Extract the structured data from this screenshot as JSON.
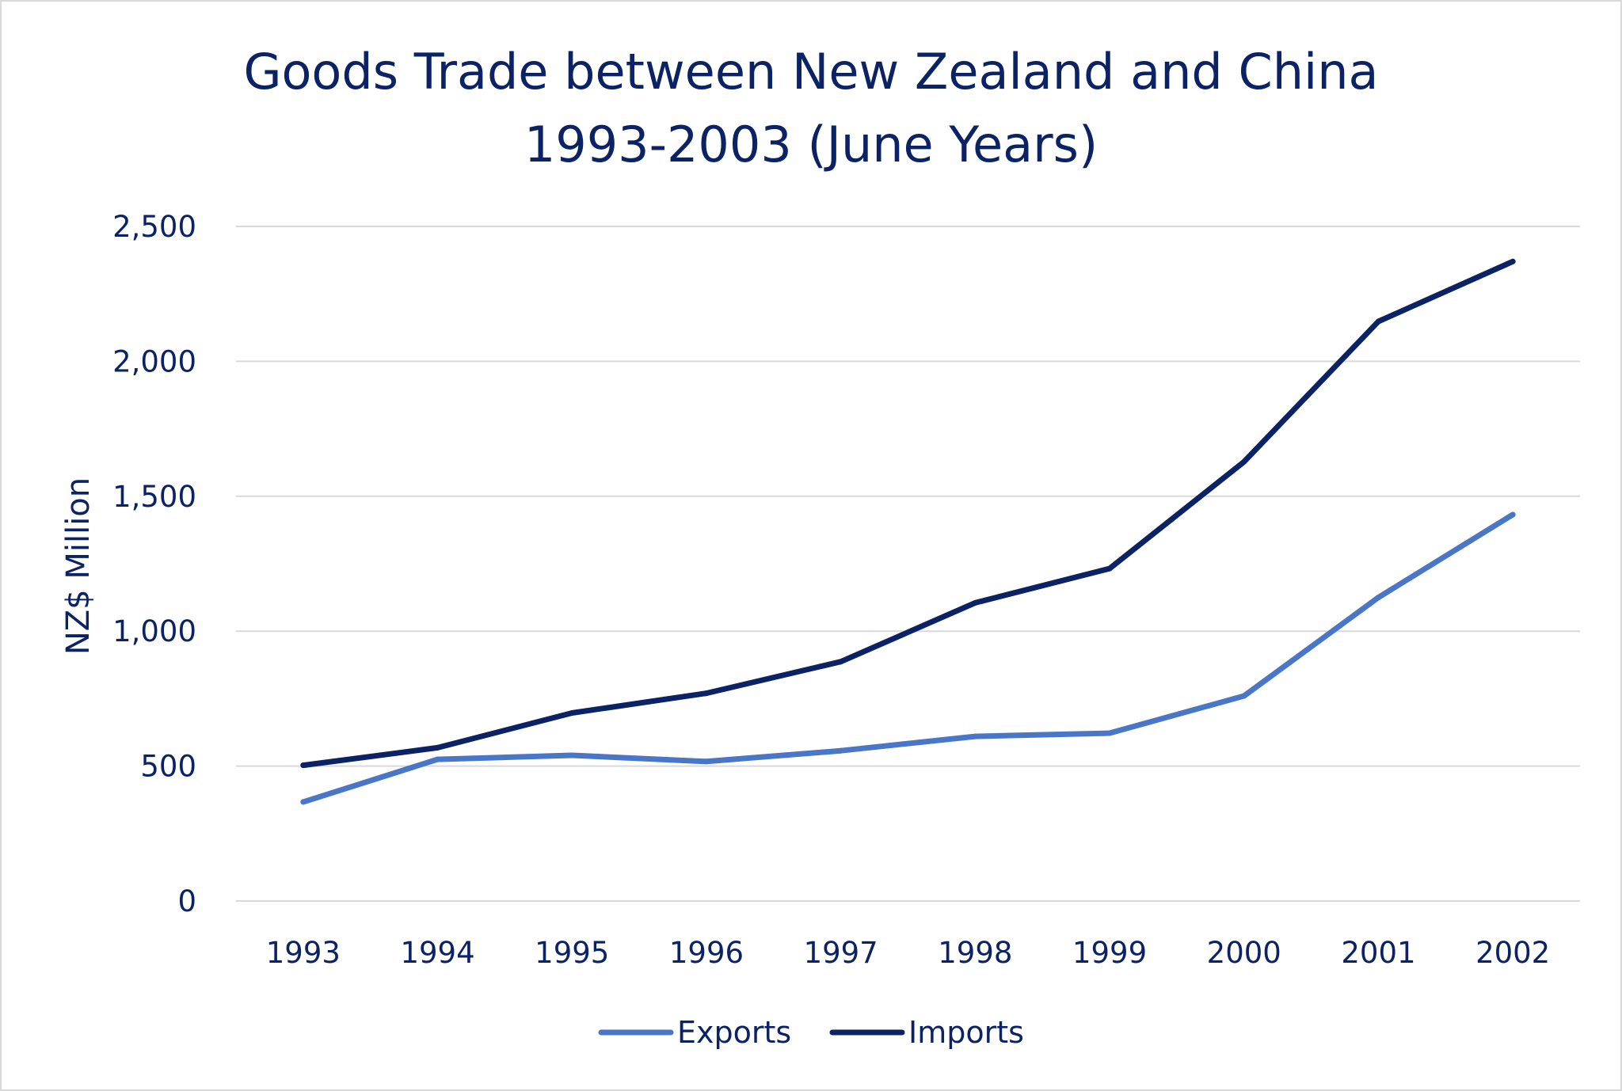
{
  "chart_data": {
    "type": "line",
    "title_lines": [
      "Goods Trade between New Zealand and China",
      "1993-2003 (June Years)"
    ],
    "xlabel": "",
    "ylabel": "NZ$ Million",
    "categories": [
      "1993",
      "1994",
      "1995",
      "1996",
      "1997",
      "1998",
      "1999",
      "2000",
      "2001",
      "2002"
    ],
    "ylim": [
      0,
      2500
    ],
    "yticks": [
      0,
      500,
      1000,
      1500,
      2000,
      2500
    ],
    "ytick_labels": [
      "0",
      "500",
      "1,000",
      "1,500",
      "2,000",
      "2,500"
    ],
    "grid": true,
    "legend_position": "bottom",
    "series": [
      {
        "name": "Exports",
        "color": "#4a76c8",
        "values": [
          367,
          525,
          540,
          517,
          557,
          610,
          622,
          760,
          1125,
          1432
        ]
      },
      {
        "name": "Imports",
        "color": "#0b2265",
        "values": [
          503,
          568,
          697,
          770,
          887,
          1105,
          1232,
          1628,
          2148,
          2370
        ]
      }
    ]
  }
}
